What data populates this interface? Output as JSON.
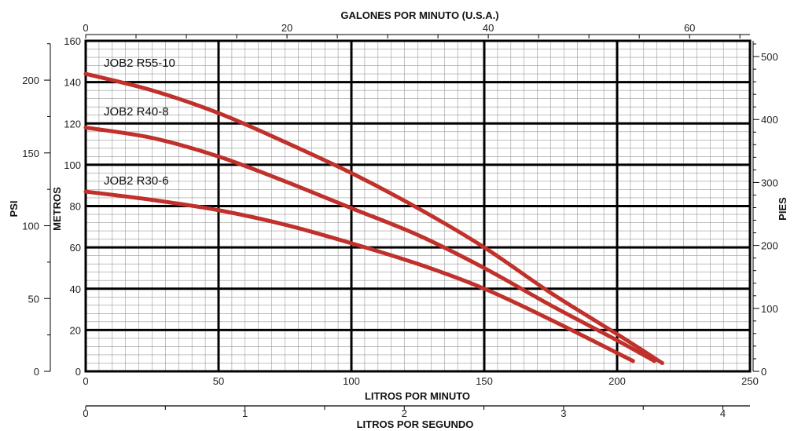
{
  "chart_data": {
    "type": "line",
    "axes": {
      "bottom": {
        "label": "LITROS POR MINUTO",
        "range": [
          0,
          250
        ],
        "ticks": [
          0,
          50,
          100,
          150,
          200,
          250
        ]
      },
      "top": {
        "label": "GALONES POR MINUTO (U.S.A.)",
        "range": [
          0,
          66
        ],
        "ticks": [
          0,
          20,
          40,
          60
        ]
      },
      "left_inner": {
        "label": "METROS",
        "range": [
          0,
          160
        ],
        "ticks": [
          0,
          20,
          40,
          60,
          80,
          100,
          120,
          140,
          160
        ]
      },
      "left_outer": {
        "label": "PSI",
        "range": [
          0,
          227
        ],
        "ticks": [
          0,
          50,
          100,
          150,
          200
        ]
      },
      "right": {
        "label": "PIES",
        "range": [
          0,
          525
        ],
        "ticks": [
          0,
          100,
          200,
          300,
          400,
          500
        ]
      },
      "bottom_secondary": {
        "label": "LITROS POR SEGUNDO",
        "range": [
          0,
          4.17
        ],
        "ticks": [
          0,
          1,
          2,
          3,
          4
        ]
      }
    },
    "grid": true,
    "series": [
      {
        "name": "JOB2 R55-10",
        "color": "#c0312b",
        "x": [
          0,
          25,
          50,
          75,
          100,
          125,
          150,
          175,
          200,
          217
        ],
        "y": [
          144,
          136,
          125,
          111,
          96,
          79,
          60,
          38,
          18,
          4
        ]
      },
      {
        "name": "JOB2 R40-8",
        "color": "#c0312b",
        "x": [
          0,
          25,
          50,
          75,
          100,
          125,
          150,
          175,
          200,
          214
        ],
        "y": [
          118,
          113,
          104,
          92,
          79,
          66,
          50,
          32,
          15,
          5
        ]
      },
      {
        "name": "JOB2 R30-6",
        "color": "#c0312b",
        "x": [
          0,
          25,
          50,
          75,
          100,
          125,
          150,
          175,
          206
        ],
        "y": [
          87,
          83,
          78,
          71,
          62,
          52,
          40,
          25,
          5
        ]
      }
    ]
  }
}
